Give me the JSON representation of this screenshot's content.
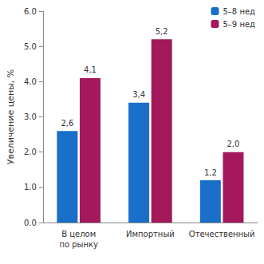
{
  "chart_data": {
    "type": "bar",
    "categories": [
      "В целом\nпо рынку",
      "Импортный",
      "Отечественный"
    ],
    "series": [
      {
        "name": "5–8 нед",
        "color": "#1a6fc9",
        "values": [
          2.6,
          3.4,
          1.2
        ],
        "value_labels": [
          "2,6",
          "3,4",
          "1,2"
        ]
      },
      {
        "name": "5–9 нед",
        "color": "#a3195b",
        "values": [
          4.1,
          5.2,
          2.0
        ],
        "value_labels": [
          "4,1",
          "5,2",
          "2,0"
        ]
      }
    ],
    "y_label": "Увеличение цены, %",
    "ylim": [
      0,
      6
    ],
    "yticks": [
      {
        "value": 0,
        "label": "0.0"
      },
      {
        "value": 1,
        "label": "1.0"
      },
      {
        "value": 2,
        "label": "2.0"
      },
      {
        "value": 3,
        "label": "3.0"
      },
      {
        "value": 4,
        "label": "4.0"
      },
      {
        "value": 5,
        "label": "5.0"
      },
      {
        "value": 6,
        "label": "6.0"
      }
    ],
    "grid": false,
    "legend": "upper right",
    "data_labels": true
  }
}
